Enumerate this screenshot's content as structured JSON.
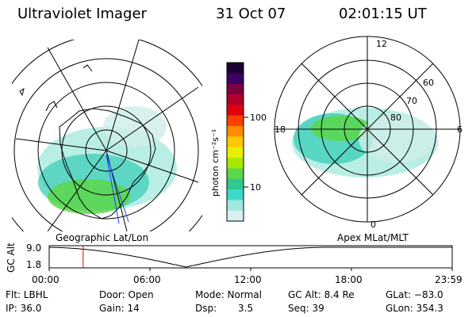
{
  "header": {
    "title": "Ultraviolet Imager",
    "date": "31 Oct 07",
    "time": "02:01:15 UT"
  },
  "left_panel": {
    "caption": "Geographic Lat/Lon"
  },
  "right_panel": {
    "caption": "Apex MLat/MLT",
    "mlt_labels": [
      "12",
      "18",
      "6",
      "0"
    ],
    "lat_labels": [
      "60",
      "70",
      "80"
    ]
  },
  "colorbar": {
    "unit_label": "photon cm⁻²s⁻¹",
    "ticks": [
      "100",
      "10"
    ],
    "colors": [
      "#1a0033",
      "#3b0060",
      "#7a0040",
      "#b0002a",
      "#e00010",
      "#ff4000",
      "#ff8c00",
      "#ffc800",
      "#e8f000",
      "#a8e800",
      "#5cd64a",
      "#30c890",
      "#3ed8c8",
      "#9ee8e0",
      "#d8f0ee"
    ]
  },
  "timeline": {
    "ylabel": "GC Alt",
    "y_top": "9.0",
    "y_bottom": "1.8",
    "ticks": [
      "00:00",
      "06:00",
      "12:00",
      "18:00",
      "23:59"
    ],
    "marker_hour": 2.02,
    "marker_color": "#e00000"
  },
  "status": {
    "flt": "Flt: LBHL",
    "ip": "IP: 36.0",
    "door": "Door: Open",
    "gain": "Gain: 14",
    "mode": "Mode: Normal",
    "dsp_label": "Dsp:",
    "dsp_value": "3.5",
    "gcalt": "GC Alt: 8.4 Re",
    "seq": "Seq: 39",
    "glat": "GLat: −83.0",
    "glon": "GLon: 354.3"
  }
}
